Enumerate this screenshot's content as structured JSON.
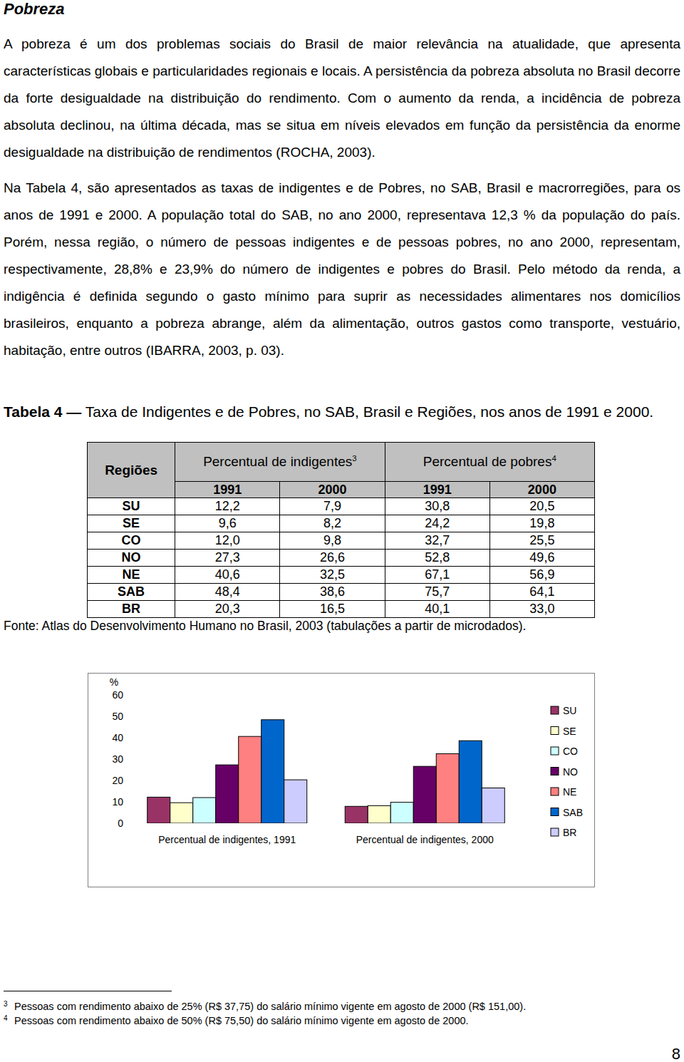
{
  "heading": "Pobreza",
  "paragraphs": [
    "A pobreza é um dos problemas sociais do Brasil de maior relevância na atualidade, que apresenta características globais e particularidades regionais e locais. A persistência da pobreza absoluta no Brasil decorre da forte desigualdade na distribuição do rendimento. Com o aumento da renda, a incidência de pobreza absoluta declinou, na última década, mas se situa em níveis elevados em função da persistência da enorme desigualdade na distribuição de rendimentos (ROCHA, 2003).",
    "Na Tabela 4, são apresentados as taxas de indigentes e de Pobres, no SAB, Brasil e macrorregiões, para os anos de 1991 e 2000. A população total do SAB, no ano 2000, representava 12,3 % da população do país. Porém, nessa região, o número de pessoas indigentes e de pessoas pobres, no ano 2000, representam, respectivamente, 28,8% e 23,9% do número de indigentes e pobres do Brasil. Pelo método da renda, a indigência é definida segundo o gasto mínimo para suprir as necessidades alimentares nos domicílios brasileiros, enquanto a pobreza abrange, além da alimentação, outros gastos como transporte, vestuário, habitação, entre outros (IBARRA, 2003, p. 03)."
  ],
  "table": {
    "caption_label": "Tabela 4 —",
    "caption": "Taxa de Indigentes e de Pobres, no SAB, Brasil e Regiões, nos anos de 1991 e 2000.",
    "header": [
      "Regiões",
      {
        "text": "Percentual de indigentes",
        "note": "3"
      },
      {
        "text": "Percentual de pobres",
        "note": "4"
      }
    ],
    "years": [
      "1991",
      "2000",
      "1991",
      "2000"
    ],
    "rows": [
      [
        "SU",
        "12,2",
        "7,9",
        "30,8",
        "20,5"
      ],
      [
        "SE",
        "9,6",
        "8,2",
        "24,2",
        "19,8"
      ],
      [
        "CO",
        "12,0",
        "9,8",
        "32,7",
        "25,5"
      ],
      [
        "NO",
        "27,3",
        "26,6",
        "52,8",
        "49,6"
      ],
      [
        "NE",
        "40,6",
        "32,5",
        "67,1",
        "56,9"
      ],
      [
        "SAB",
        "48,4",
        "38,6",
        "75,7",
        "64,1"
      ],
      [
        "BR",
        "20,3",
        "16,5",
        "40,1",
        "33,0"
      ]
    ],
    "source": "Fonte: Atlas do Desenvolvimento Humano no Brasil, 2003 (tabulações a partir de microdados)."
  },
  "chart_data": {
    "type": "bar",
    "y_label": "%",
    "categories": [
      "Percentual de indigentes, 1991",
      "Percentual de indigentes, 2000"
    ],
    "series": [
      {
        "name": "SU",
        "color": "#993366",
        "values": [
          12.2,
          7.9
        ]
      },
      {
        "name": "SE",
        "color": "#ffffcc",
        "values": [
          9.6,
          8.2
        ]
      },
      {
        "name": "CO",
        "color": "#ccffff",
        "values": [
          12.0,
          9.8
        ]
      },
      {
        "name": "NO",
        "color": "#660066",
        "values": [
          27.3,
          26.6
        ]
      },
      {
        "name": "NE",
        "color": "#ff8080",
        "values": [
          40.6,
          32.5
        ]
      },
      {
        "name": "SAB",
        "color": "#0066cc",
        "values": [
          48.4,
          38.6
        ]
      },
      {
        "name": "BR",
        "color": "#ccccff",
        "values": [
          20.3,
          16.5
        ]
      }
    ],
    "ylim": [
      0,
      60
    ],
    "yticks": [
      0,
      10,
      20,
      30,
      40,
      50,
      60
    ],
    "grid": false,
    "legend": "right"
  },
  "footnotes": [
    {
      "mark": "3",
      "text": "Pessoas com rendimento abaixo de 25% (R$ 37,75) do salário mínimo vigente em agosto de 2000 (R$ 151,00)."
    },
    {
      "mark": "4",
      "text": "Pessoas com rendimento abaixo de 50% (R$ 75,50) do salário mínimo vigente em agosto de 2000."
    }
  ],
  "page_number": "8"
}
